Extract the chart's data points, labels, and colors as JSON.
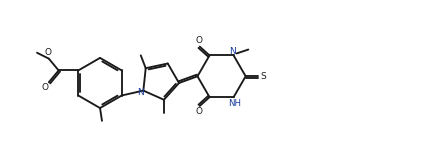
{
  "bg_color": "#ffffff",
  "line_color": "#1a1a1a",
  "line_width": 1.35,
  "figsize": [
    4.33,
    1.63
  ],
  "dpi": 100,
  "blue_color": "#1a3a9a",
  "xlim": [
    0,
    4.33
  ],
  "ylim": [
    0,
    1.63
  ]
}
